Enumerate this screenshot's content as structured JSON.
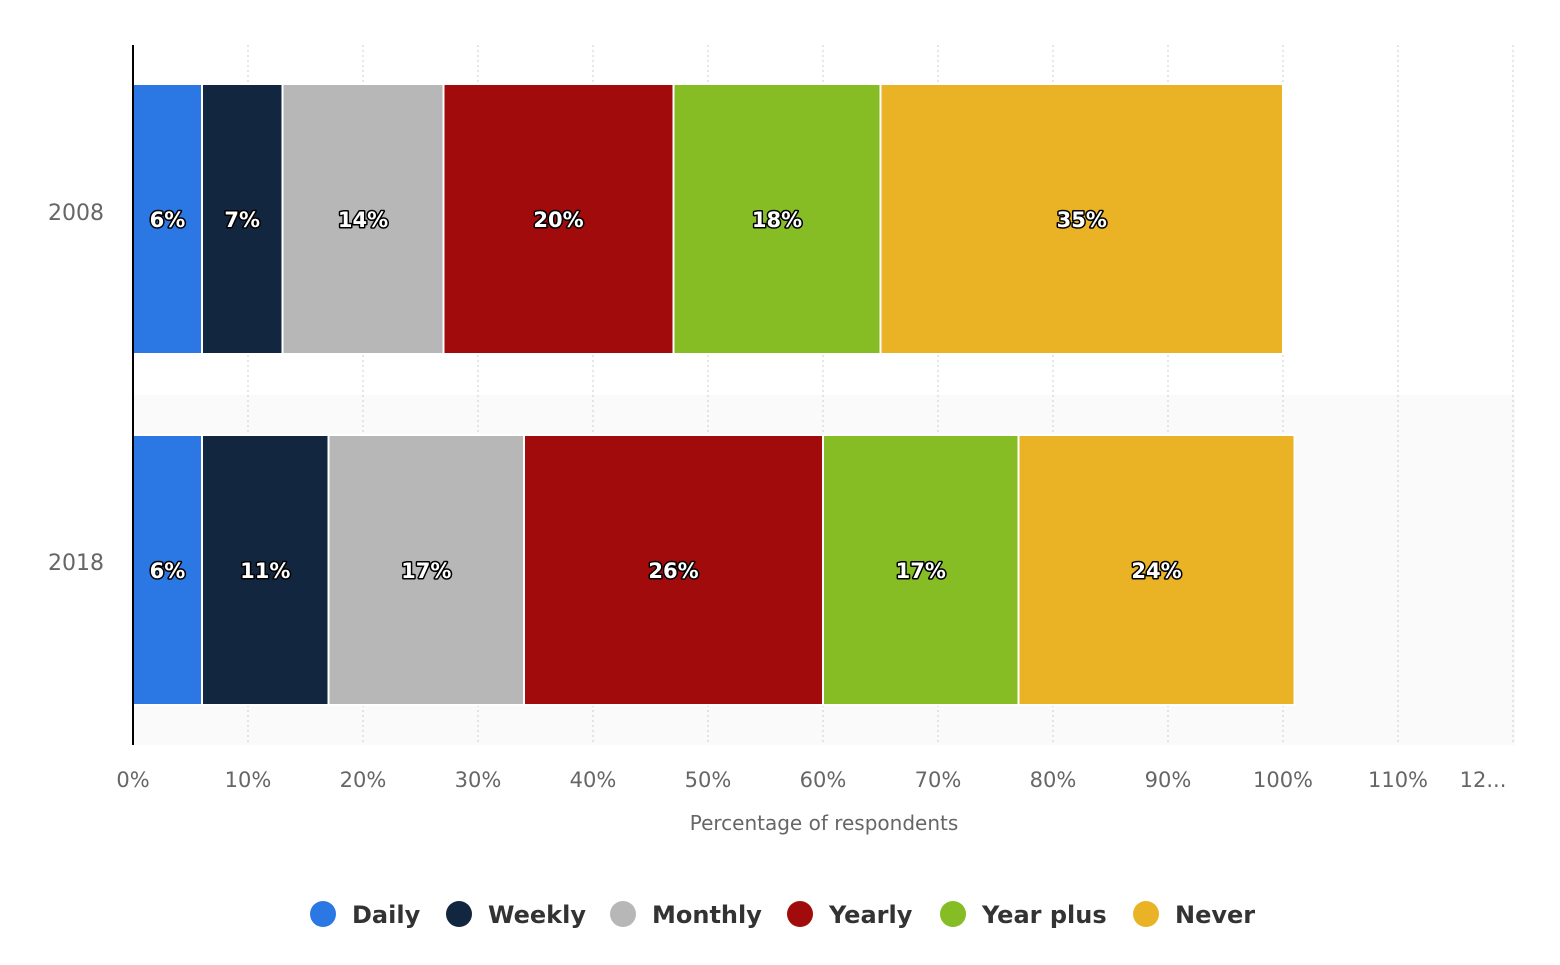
{
  "chart_data": {
    "type": "bar",
    "orientation": "horizontal",
    "stacked": true,
    "categories": [
      "2008",
      "2018"
    ],
    "series": [
      {
        "name": "Daily",
        "color": "#2b78e4",
        "values": [
          6,
          6
        ],
        "labels": [
          "6%",
          "6%"
        ]
      },
      {
        "name": "Weekly",
        "color": "#12263f",
        "values": [
          7,
          11
        ],
        "labels": [
          "7%",
          "11%"
        ]
      },
      {
        "name": "Monthly",
        "color": "#b7b7b7",
        "values": [
          14,
          17
        ],
        "labels": [
          "14%",
          "17%"
        ]
      },
      {
        "name": "Yearly",
        "color": "#a20b0b",
        "values": [
          20,
          26
        ],
        "labels": [
          "20%",
          "26%"
        ]
      },
      {
        "name": "Year plus",
        "color": "#86bc24",
        "values": [
          18,
          17
        ],
        "labels": [
          "18%",
          "17%"
        ]
      },
      {
        "name": "Never",
        "color": "#eab325",
        "values": [
          35,
          24
        ],
        "labels": [
          "35%",
          "24%"
        ]
      }
    ],
    "x_ticks": [
      "0%",
      "10%",
      "20%",
      "30%",
      "40%",
      "50%",
      "60%",
      "70%",
      "80%",
      "90%",
      "100%",
      "110%",
      "12..."
    ],
    "xlim": [
      0,
      120
    ],
    "xlabel": "Percentage of respondents",
    "ylabel": "",
    "grid": "vertical dotted",
    "legend_position": "bottom"
  }
}
